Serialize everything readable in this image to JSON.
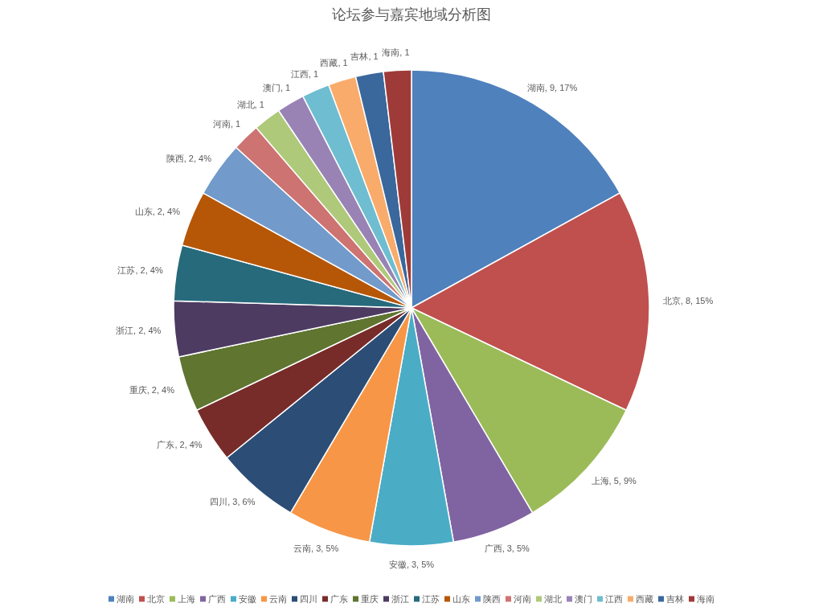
{
  "chart_data": {
    "type": "pie",
    "title": "论坛参与嘉宾地域分析图",
    "categories": [
      "湖南",
      "北京",
      "上海",
      "广西",
      "安徽",
      "云南",
      "四川",
      "广东",
      "重庆",
      "浙江",
      "江苏",
      "山东",
      "陕西",
      "河南",
      "湖北",
      "澳门",
      "江西",
      "西藏",
      "吉林",
      "海南"
    ],
    "values": [
      9,
      8,
      5,
      3,
      3,
      3,
      3,
      2,
      2,
      2,
      2,
      2,
      2,
      1,
      1,
      1,
      1,
      1,
      1,
      1
    ],
    "colors": [
      "#4f81bd",
      "#c0504d",
      "#9bbb59",
      "#8064a2",
      "#4bacc6",
      "#f79646",
      "#2c4d75",
      "#772c2a",
      "#5f7530",
      "#4d3b62",
      "#276a7c",
      "#b65708",
      "#729aca",
      "#cd7371",
      "#afc97a",
      "#9983b5",
      "#6fbdd1",
      "#f9ab6b",
      "#3a679c",
      "#9e3b38"
    ],
    "value_labels": [
      "湖南, 9, 17%",
      "北京, 8, 15%",
      "上海, 5, 9%",
      "广西, 3, 5%",
      "安徽, 3, 5%",
      "云南, 3, 5%",
      "四川, 3, 6%",
      "广东, 2, 4%",
      "重庆, 2, 4%",
      "浙江, 2, 4%",
      "江苏, 2, 4%",
      "山东, 2, 4%",
      "陕西, 2, 4%",
      "河南, 1",
      "湖北, 1",
      "澳门, 1",
      "江西, 1",
      "西藏, 1",
      "吉林, 1",
      "海南, 1"
    ],
    "legend": "bottom"
  }
}
